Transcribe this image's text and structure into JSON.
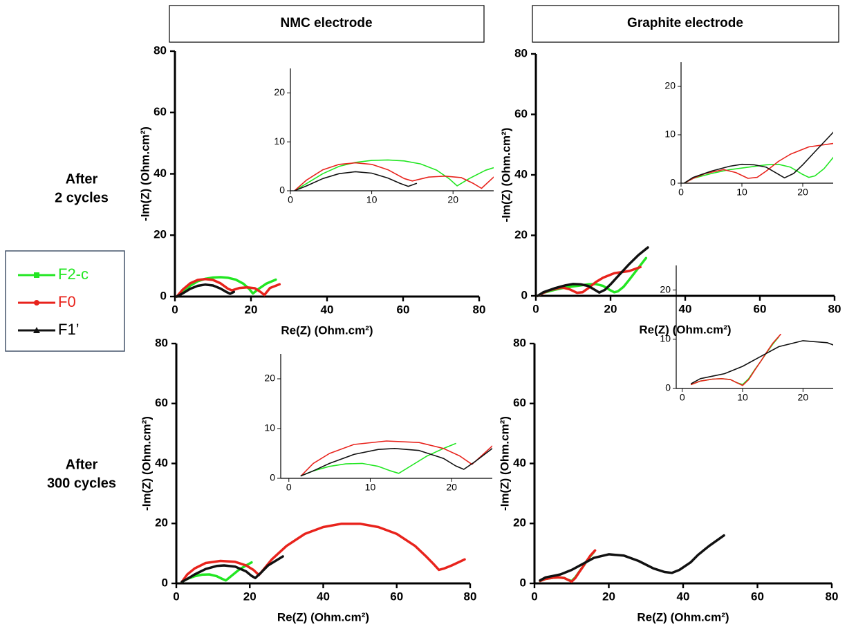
{
  "column_titles": [
    "NMC electrode",
    "Graphite electrode"
  ],
  "row_titles": [
    [
      "After",
      "2 cycles"
    ],
    [
      "After",
      "300 cycles"
    ]
  ],
  "chart_data": [
    {
      "type": "line",
      "x_label": "Re(Z) (Ohm.cm²)",
      "y_label": "-Im(Z) (Ohm.cm²)",
      "xlim": [
        0,
        80
      ],
      "ylim": [
        0,
        80
      ],
      "xticks": [
        0,
        20,
        40,
        60,
        80
      ],
      "yticks": [
        0,
        20,
        40,
        60,
        80
      ],
      "series": [
        {
          "name": "F2-c",
          "color": "#22e622",
          "x": [
            0.5,
            2,
            4,
            6,
            8,
            10,
            12,
            14,
            16,
            18,
            19.5,
            20.5,
            22,
            24,
            26.5
          ],
          "values": [
            0,
            1.5,
            3.5,
            5,
            5.8,
            6.2,
            6.3,
            6.1,
            5.5,
            4.2,
            2.5,
            1,
            2.5,
            4.2,
            5.5
          ]
        },
        {
          "name": "F0",
          "color": "#e8231c",
          "x": [
            0.5,
            2,
            4,
            6,
            8,
            10,
            12,
            14,
            15,
            17,
            19,
            21,
            22.5,
            23.5,
            25,
            27.5
          ],
          "values": [
            0,
            2.2,
            4.3,
            5.4,
            5.7,
            5.4,
            4.3,
            2.5,
            2,
            2.8,
            3,
            2.7,
            1.5,
            0.5,
            2.8,
            4
          ]
        },
        {
          "name": "F1’",
          "color": "#111111",
          "x": [
            0.5,
            2,
            4,
            6,
            8,
            10,
            12,
            13.5,
            14.5,
            15.5
          ],
          "values": [
            0,
            1,
            2.5,
            3.5,
            3.9,
            3.6,
            2.6,
            1.5,
            0.9,
            1.5
          ]
        }
      ],
      "inset": {
        "xlim": [
          0,
          25
        ],
        "ylim": [
          0,
          25
        ],
        "xticks": [
          0,
          10,
          20
        ],
        "yticks": [
          0,
          10,
          20
        ]
      }
    },
    {
      "type": "line",
      "x_label": "Re(Z) (Ohm.cm²)",
      "y_label": "-Im(Z) (Ohm.cm²)",
      "xlim": [
        0,
        80
      ],
      "ylim": [
        0,
        80
      ],
      "xticks": [
        0,
        20,
        40,
        60,
        80
      ],
      "yticks": [
        0,
        20,
        40,
        60,
        80
      ],
      "series": [
        {
          "name": "F2-c",
          "color": "#22e622",
          "x": [
            0.5,
            2,
            5,
            8,
            11,
            14,
            16,
            18,
            20,
            21,
            22,
            23.5,
            25,
            27,
            29.5
          ],
          "values": [
            0,
            1,
            2,
            2.8,
            3.3,
            3.8,
            3.9,
            3.3,
            1.8,
            1.2,
            1.5,
            3,
            5.3,
            8.5,
            12.5
          ]
        },
        {
          "name": "F0",
          "color": "#e8231c",
          "x": [
            0.5,
            2,
            4,
            7,
            9,
            11,
            12.5,
            14,
            16,
            18,
            21,
            25,
            28
          ],
          "values": [
            0,
            1,
            2,
            2.8,
            2.2,
            1,
            1.2,
            2.5,
            4.5,
            6,
            7.5,
            8.2,
            9.5
          ]
        },
        {
          "name": "F1’",
          "color": "#111111",
          "x": [
            0.5,
            2,
            5,
            8,
            10,
            12,
            14,
            15.5,
            17,
            18.5,
            20,
            22,
            25,
            27.5,
            30
          ],
          "values": [
            0,
            1.2,
            2.5,
            3.5,
            3.9,
            3.8,
            3.3,
            2.2,
            1.1,
            2,
            3.8,
            6.5,
            10.5,
            13.5,
            16
          ]
        }
      ],
      "inset": {
        "xlim": [
          0,
          25
        ],
        "ylim": [
          0,
          25
        ],
        "xticks": [
          0,
          10,
          20
        ],
        "yticks": [
          0,
          10,
          20
        ]
      }
    },
    {
      "type": "line",
      "x_label": "Re(Z) (Ohm.cm²)",
      "y_label": "-Im(Z) (Ohm.cm²)",
      "xlim": [
        0,
        80
      ],
      "ylim": [
        0,
        80
      ],
      "xticks": [
        0,
        20,
        40,
        60,
        80
      ],
      "yticks": [
        0,
        20,
        40,
        60,
        80
      ],
      "series": [
        {
          "name": "F2-c",
          "color": "#22e622",
          "x": [
            1.5,
            3,
            5,
            7,
            9,
            11,
            12.5,
            13.5,
            15,
            17,
            19,
            20.5
          ],
          "values": [
            0.5,
            1.5,
            2.4,
            2.9,
            3,
            2.4,
            1.5,
            1,
            2.5,
            4.5,
            6,
            7
          ]
        },
        {
          "name": "F0",
          "color": "#e8231c",
          "x": [
            1.5,
            3,
            5,
            8,
            12,
            16,
            19,
            21,
            22.5,
            24,
            26,
            30,
            35,
            40,
            45,
            50,
            55,
            60,
            65,
            68,
            70,
            71.5,
            73,
            75,
            78.5
          ],
          "values": [
            0.5,
            3,
            5,
            6.8,
            7.5,
            7.2,
            6,
            4.5,
            2.8,
            5,
            8,
            12.5,
            16.5,
            18.8,
            19.9,
            19.9,
            18.8,
            16.5,
            12.5,
            9,
            6.5,
            4.5,
            5,
            6,
            8
          ]
        },
        {
          "name": "F1’",
          "color": "#111111",
          "x": [
            1.5,
            3,
            5,
            8,
            11,
            13,
            16,
            19,
            20.5,
            21.5,
            23,
            25,
            27,
            29
          ],
          "values": [
            0.5,
            1.5,
            3,
            4.8,
            5.8,
            6,
            5.6,
            4,
            2.5,
            1.8,
            3.5,
            6,
            7.5,
            9
          ]
        }
      ],
      "inset": {
        "xlim": [
          -1,
          25
        ],
        "ylim": [
          0,
          25
        ],
        "xticks": [
          0,
          10,
          20
        ],
        "yticks": [
          0,
          10,
          20
        ]
      }
    },
    {
      "type": "line",
      "x_label": "Re(Z) (Ohm.cm²)",
      "y_label": "-Im(Z) (Ohm.cm²)",
      "xlim": [
        0,
        80
      ],
      "ylim": [
        0,
        80
      ],
      "xticks": [
        0,
        20,
        40,
        60,
        80
      ],
      "yticks": [
        0,
        20,
        40,
        60,
        80
      ],
      "series": [
        {
          "name": "F2-c",
          "color": "#22e622",
          "x": [
            1.5,
            3,
            5,
            6.5,
            8,
            9,
            10,
            11,
            12,
            13,
            14,
            15,
            16
          ],
          "values": [
            0.8,
            1.5,
            1.9,
            2,
            1.8,
            1.2,
            0.8,
            2,
            3.8,
            5.5,
            7.3,
            9,
            10.5
          ]
        },
        {
          "name": "F0",
          "color": "#e8231c",
          "x": [
            1.5,
            3,
            5,
            6.5,
            8,
            9,
            10,
            11,
            12,
            13,
            14,
            15,
            16.3
          ],
          "values": [
            0.8,
            1.5,
            1.9,
            2,
            1.8,
            1.2,
            0.6,
            1.8,
            3.7,
            5.5,
            7.4,
            9.2,
            11
          ]
        },
        {
          "name": "F1’",
          "color": "#111111",
          "x": [
            1.5,
            3,
            5,
            7,
            10,
            13,
            16,
            20,
            24,
            28,
            32,
            35,
            37,
            39,
            42,
            44,
            47,
            51
          ],
          "values": [
            1,
            2,
            2.5,
            3,
            4.5,
            6.5,
            8.5,
            9.7,
            9.3,
            7.5,
            5,
            3.8,
            3.5,
            4.5,
            7,
            9.5,
            12.5,
            16
          ]
        }
      ],
      "inset": {
        "xlim": [
          -1,
          25
        ],
        "ylim": [
          0,
          25
        ],
        "xticks": [
          0,
          10,
          20
        ],
        "yticks": [
          0,
          10,
          20
        ]
      }
    }
  ]
}
